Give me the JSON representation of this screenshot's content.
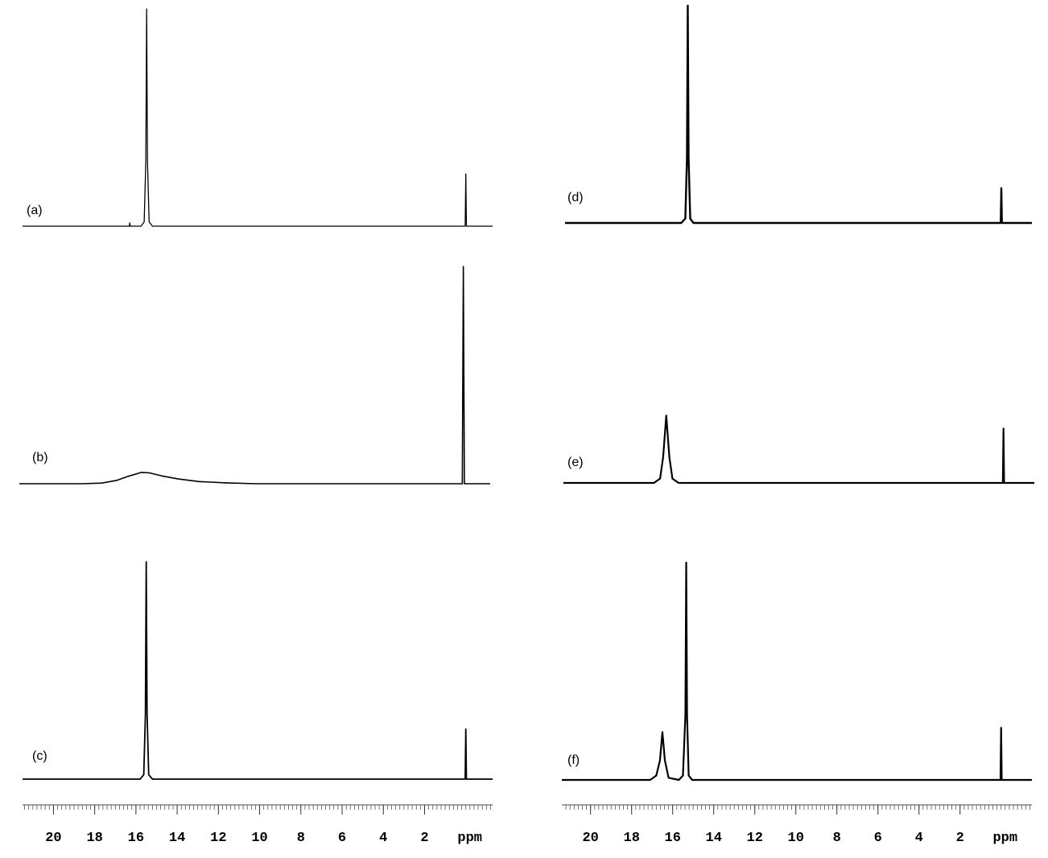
{
  "chart_data": [
    {
      "type": "line",
      "label": "(a)",
      "xlim": [
        21.5,
        -1.3
      ],
      "color": "#000000",
      "x": [
        21.5,
        16.32,
        16.3,
        16.28,
        15.75,
        15.6,
        15.52,
        15.48,
        15.44,
        15.36,
        15.2,
        0.03,
        0,
        -0.03,
        -1.3
      ],
      "values": [
        0,
        0,
        1.5,
        0,
        0,
        2,
        30,
        100,
        30,
        2,
        0,
        0,
        24,
        0,
        0
      ]
    },
    {
      "type": "line",
      "label": "(b)",
      "xlim": [
        21.5,
        -1.3
      ],
      "color": "#000000",
      "x": [
        21.5,
        18.5,
        17.5,
        16.8,
        16.2,
        15.6,
        15.2,
        14.6,
        13.8,
        12.8,
        11.5,
        10,
        0.05,
        0,
        -0.05,
        -1.3
      ],
      "values": [
        0,
        0,
        0.3,
        1.5,
        3.5,
        5.2,
        5,
        3.6,
        2.2,
        1,
        0.4,
        0,
        0,
        100,
        0,
        0
      ]
    },
    {
      "type": "line",
      "label": "(c)",
      "xlim": [
        21.5,
        -1.3
      ],
      "color": "#000000",
      "x": [
        21.5,
        15.8,
        15.62,
        15.54,
        15.5,
        15.46,
        15.38,
        15.2,
        0.03,
        0,
        -0.03,
        -1.3
      ],
      "values": [
        0,
        0,
        2,
        30,
        100,
        30,
        2,
        0,
        0,
        23,
        0,
        0
      ],
      "xticks": [
        20,
        18,
        16,
        14,
        12,
        10,
        8,
        6,
        4,
        2
      ],
      "xlabel": "ppm",
      "minor_tick_interval": 0.2
    },
    {
      "type": "line",
      "label": "(d)",
      "xlim": [
        21.4,
        -1.5
      ],
      "color": "#000000",
      "x": [
        21.4,
        15.7,
        15.5,
        15.42,
        15.38,
        15.34,
        15.26,
        15.1,
        0.03,
        0,
        -0.03,
        -1.5
      ],
      "values": [
        0,
        0,
        2,
        30,
        100,
        30,
        2,
        0,
        0,
        16,
        0,
        0
      ]
    },
    {
      "type": "line",
      "label": "(e)",
      "xlim": [
        21.4,
        -1.5
      ],
      "color": "#000000",
      "x": [
        21.4,
        17,
        16.7,
        16.55,
        16.4,
        16.25,
        16.1,
        15.8,
        0.03,
        0,
        -0.03,
        -1.5
      ],
      "values": [
        0,
        0,
        2,
        12,
        31,
        12,
        2,
        0,
        0,
        25,
        0,
        0
      ]
    },
    {
      "type": "line",
      "label": "(f)",
      "xlim": [
        21.4,
        -1.5
      ],
      "color": "#000000",
      "x": [
        21.4,
        17.1,
        16.8,
        16.62,
        16.5,
        16.38,
        16.2,
        15.7,
        15.5,
        15.38,
        15.34,
        15.3,
        15.22,
        15.05,
        0.03,
        0,
        -0.03,
        -1.5
      ],
      "values": [
        0,
        0,
        2,
        9,
        22,
        9,
        1,
        0,
        2,
        30,
        100,
        30,
        2,
        0,
        0,
        24,
        0,
        0
      ],
      "xticks": [
        20,
        18,
        16,
        14,
        12,
        10,
        8,
        6,
        4,
        2
      ],
      "xlabel": "ppm",
      "minor_tick_interval": 0.2
    }
  ]
}
